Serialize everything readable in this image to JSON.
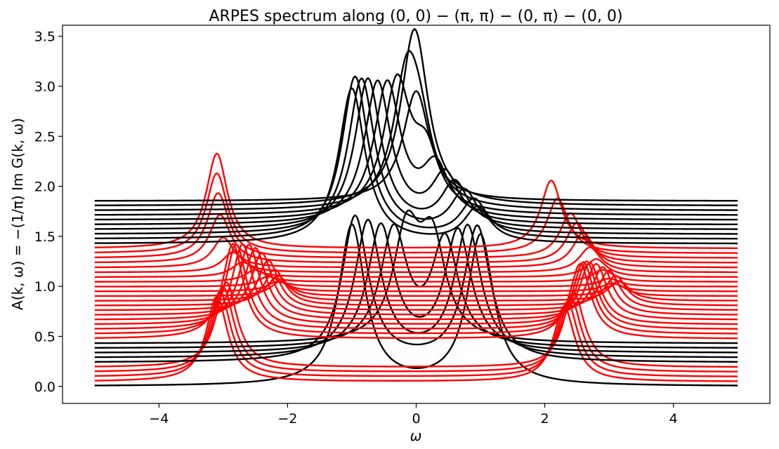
{
  "chart_data": {
    "type": "line",
    "title": "ARPES spectrum along (0, 0) − (π, π) − (0, π) − (0, 0)",
    "xlabel": "ω",
    "ylabel": "A(k, ω) = −(1/π) Im G(k, ω)",
    "xlim": [
      -5.5,
      5.5
    ],
    "ylim": [
      -0.17,
      3.61
    ],
    "x_range": [
      -5,
      5
    ],
    "xticks": [
      -4,
      -2,
      0,
      2,
      4
    ],
    "xtick_labels": [
      "−4",
      "−2",
      "0",
      "2",
      "4"
    ],
    "yticks": [
      0.0,
      0.5,
      1.0,
      1.5,
      2.0,
      2.5,
      3.0,
      3.5
    ],
    "ytick_labels": [
      "0.0",
      "0.5",
      "1.0",
      "1.5",
      "2.0",
      "2.5",
      "3.0",
      "3.5"
    ],
    "grid": false,
    "legend": "none",
    "curve_count": 40,
    "baseline_offsets": {
      "start": 0.0,
      "step": 0.0475
    },
    "series_colors": {
      "black": "#000000",
      "red": "#ff0000"
    },
    "color_sequence": [
      "black",
      "red",
      "red",
      "red",
      "red",
      "black",
      "black",
      "black",
      "black",
      "black",
      "red",
      "red",
      "red",
      "red",
      "red",
      "red",
      "red",
      "red",
      "red",
      "red",
      "red",
      "red",
      "red",
      "red",
      "red",
      "red",
      "red",
      "red",
      "red",
      "red",
      "black",
      "black",
      "black",
      "black",
      "black",
      "black",
      "black",
      "black",
      "black",
      "black"
    ],
    "peaks_by_curve": [
      [
        [
          -1.0,
          1.6,
          0.25
        ],
        [
          1.0,
          1.5,
          0.25
        ]
      ],
      [
        [
          -3.1,
          0.85,
          0.2
        ],
        [
          2.3,
          0.75,
          0.2
        ]
      ],
      [
        [
          -3.05,
          0.85,
          0.2
        ],
        [
          2.35,
          0.75,
          0.2
        ]
      ],
      [
        [
          -3.0,
          0.85,
          0.2
        ],
        [
          2.4,
          0.75,
          0.2
        ]
      ],
      [
        [
          -2.95,
          0.85,
          0.2
        ],
        [
          2.45,
          0.75,
          0.2
        ]
      ],
      [
        [
          -0.95,
          1.45,
          0.25
        ],
        [
          0.95,
          1.35,
          0.25
        ]
      ],
      [
        [
          -0.75,
          1.35,
          0.25
        ],
        [
          0.8,
          1.3,
          0.25
        ]
      ],
      [
        [
          -0.55,
          1.25,
          0.25
        ],
        [
          0.65,
          1.2,
          0.25
        ]
      ],
      [
        [
          -0.35,
          1.15,
          0.25
        ],
        [
          0.45,
          1.05,
          0.25
        ]
      ],
      [
        [
          -0.15,
          1.05,
          0.25
        ],
        [
          0.25,
          0.95,
          0.25
        ]
      ],
      [
        [
          -2.85,
          0.95,
          0.2
        ],
        [
          2.55,
          0.75,
          0.2
        ]
      ],
      [
        [
          -2.8,
          0.9,
          0.2
        ],
        [
          2.6,
          0.72,
          0.2
        ]
      ],
      [
        [
          -2.7,
          0.85,
          0.2
        ],
        [
          2.65,
          0.68,
          0.2
        ]
      ],
      [
        [
          -2.6,
          0.8,
          0.2
        ],
        [
          2.7,
          0.62,
          0.2
        ]
      ],
      [
        [
          -2.5,
          0.72,
          0.2
        ],
        [
          2.8,
          0.56,
          0.2
        ]
      ],
      [
        [
          -2.4,
          0.62,
          0.2
        ],
        [
          2.9,
          0.48,
          0.2
        ]
      ],
      [
        [
          -2.3,
          0.5,
          0.2
        ],
        [
          3.0,
          0.4,
          0.2
        ]
      ],
      [
        [
          -2.2,
          0.36,
          0.2
        ],
        [
          3.1,
          0.3,
          0.2
        ]
      ],
      [
        [
          -2.15,
          0.25,
          0.2
        ],
        [
          3.15,
          0.2,
          0.2
        ]
      ],
      [
        [
          -2.1,
          0.15,
          0.2
        ],
        [
          3.1,
          0.12,
          0.2
        ]
      ],
      [
        [
          -2.15,
          0.1,
          0.2
        ],
        [
          3.05,
          0.08,
          0.2
        ]
      ],
      [
        [
          -2.3,
          0.1,
          0.2
        ],
        [
          3.0,
          0.08,
          0.2
        ]
      ],
      [
        [
          -2.5,
          0.12,
          0.2
        ],
        [
          2.9,
          0.12,
          0.2
        ]
      ],
      [
        [
          -2.7,
          0.15,
          0.2
        ],
        [
          2.8,
          0.18,
          0.2
        ]
      ],
      [
        [
          -2.85,
          0.2,
          0.2
        ],
        [
          2.7,
          0.25,
          0.2
        ]
      ],
      [
        [
          -3.0,
          0.3,
          0.2
        ],
        [
          2.6,
          0.35,
          0.2
        ]
      ],
      [
        [
          -3.05,
          0.48,
          0.2
        ],
        [
          2.5,
          0.4,
          0.2
        ]
      ],
      [
        [
          -3.08,
          0.65,
          0.2
        ],
        [
          2.4,
          0.45,
          0.2
        ]
      ],
      [
        [
          -3.1,
          0.8,
          0.2
        ],
        [
          2.2,
          0.55,
          0.2
        ]
      ],
      [
        [
          -3.1,
          0.95,
          0.2
        ],
        [
          2.1,
          0.68,
          0.2
        ]
      ],
      [
        [
          -1.0,
          1.55,
          0.25
        ],
        [
          0.95,
          0.35,
          0.25
        ]
      ],
      [
        [
          -0.95,
          1.62,
          0.25
        ],
        [
          0.9,
          0.38,
          0.25
        ]
      ],
      [
        [
          -0.85,
          1.55,
          0.25
        ],
        [
          0.75,
          0.42,
          0.25
        ]
      ],
      [
        [
          -0.75,
          1.5,
          0.25
        ],
        [
          0.6,
          0.45,
          0.25
        ]
      ],
      [
        [
          -0.6,
          1.42,
          0.25
        ],
        [
          0.45,
          0.48,
          0.25
        ]
      ],
      [
        [
          -0.45,
          1.35,
          0.25
        ],
        [
          0.3,
          0.5,
          0.25
        ]
      ],
      [
        [
          -0.3,
          1.28,
          0.25
        ],
        [
          0.15,
          0.55,
          0.25
        ]
      ],
      [
        [
          -0.15,
          1.2,
          0.25
        ],
        [
          0.05,
          0.6,
          0.25
        ]
      ],
      [
        [
          -0.05,
          1.15,
          0.25
        ],
        [
          0.02,
          0.65,
          0.25
        ]
      ],
      [
        [
          0.0,
          1.0,
          0.25
        ],
        [
          0.0,
          0.1,
          0.25
        ]
      ]
    ]
  }
}
